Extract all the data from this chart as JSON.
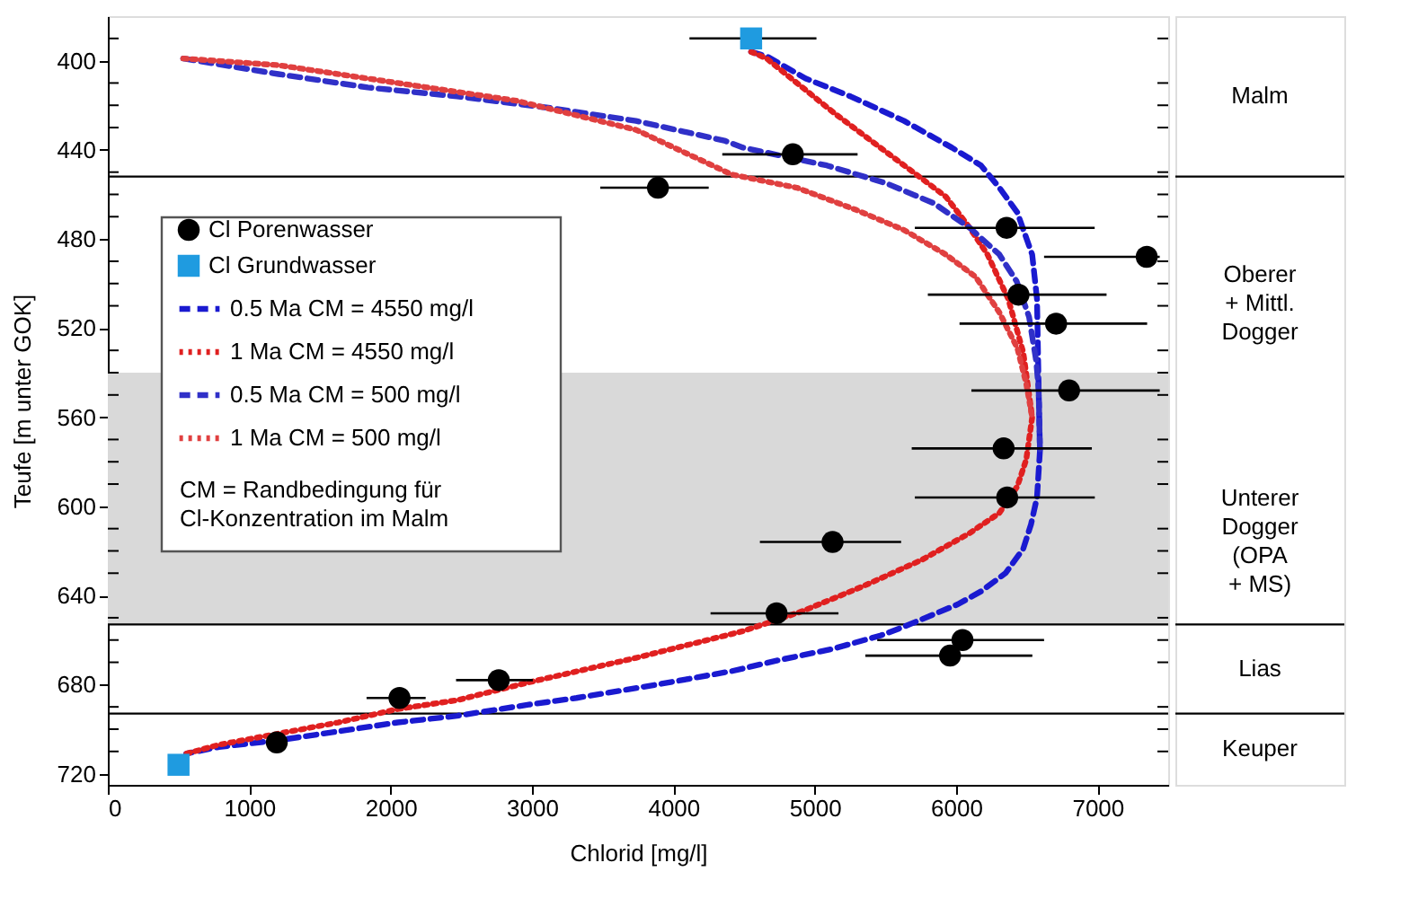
{
  "chart_data": {
    "type": "line",
    "xlabel": "Chlorid [mg/l]",
    "ylabel": "Teufe [m unter GOK]",
    "xlim": [
      0,
      7500
    ],
    "xticks": [
      0,
      1000,
      2000,
      3000,
      4000,
      5000,
      6000,
      7000
    ],
    "ylim": [
      725,
      380
    ],
    "yticks": [
      {
        "value": 390,
        "label": null
      },
      400,
      {
        "value": 410,
        "label": null
      },
      {
        "value": 420,
        "label": null
      },
      {
        "value": 430,
        "label": null
      },
      440,
      {
        "value": 450,
        "label": null
      },
      {
        "value": 460,
        "label": null
      },
      {
        "value": 470,
        "label": null
      },
      480,
      {
        "value": 490,
        "label": null
      },
      {
        "value": 500,
        "label": null
      },
      {
        "value": 510,
        "label": null
      },
      520,
      {
        "value": 530,
        "label": null
      },
      {
        "value": 540,
        "label": null
      },
      {
        "value": 550,
        "label": null
      },
      560,
      {
        "value": 570,
        "label": null
      },
      {
        "value": 580,
        "label": null
      },
      {
        "value": 590,
        "label": null
      },
      600,
      {
        "value": 610,
        "label": null
      },
      {
        "value": 620,
        "label": null
      },
      {
        "value": 630,
        "label": null
      },
      640,
      {
        "value": 650,
        "label": null
      },
      {
        "value": 660,
        "label": null
      },
      {
        "value": 670,
        "label": null
      },
      680,
      {
        "value": 690,
        "label": null
      },
      {
        "value": 700,
        "label": null
      },
      {
        "value": 710,
        "label": null
      },
      720
    ],
    "grid": false,
    "legend": "top left",
    "series": [
      {
        "name": "Cl Porenwasser",
        "type": "scatter",
        "marker": "circle",
        "color": "#000000",
        "x": [
          4845,
          3891,
          6357,
          7348,
          6441,
          6707,
          6799,
          6336,
          6361,
          5126,
          4730,
          6045,
          5957,
          2765,
          2063,
          1195
        ],
        "values": [
          442,
          457,
          475,
          488,
          505,
          518,
          548,
          574,
          596,
          616,
          648,
          660,
          667,
          678,
          686,
          706
        ],
        "xerrors": [
          [
            4346,
            5303
          ],
          [
            3483,
            4250
          ],
          [
            5708,
            6980
          ],
          [
            6622,
            7440
          ],
          [
            5800,
            7064
          ],
          [
            6024,
            7351
          ],
          [
            6108,
            7440
          ],
          [
            5686,
            6960
          ],
          [
            5708,
            6981
          ],
          [
            4612,
            5611
          ],
          [
            4263,
            5168
          ],
          [
            5442,
            6622
          ],
          [
            5358,
            6539
          ],
          [
            2463,
            3006
          ],
          [
            1830,
            2248
          ],
          null
        ]
      },
      {
        "name": "Cl Grundwasser",
        "type": "scatter",
        "marker": "square",
        "color": "#1f9be0",
        "x": [
          4550,
          500
        ],
        "values": [
          390,
          716
        ],
        "xerrors": [
          [
            4114,
            5012
          ],
          null
        ]
      },
      {
        "name": "0.5 Ma CM = 4550 mg/l",
        "type": "line",
        "line_style": "dashed",
        "color": "#1a1ad0",
        "x": [
          4550,
          4660,
          4937,
          5253,
          5632,
          5970,
          6176,
          6306,
          6432,
          6538,
          6572,
          6584,
          6593,
          6572,
          6530,
          6475,
          6349,
          6180,
          6011,
          5632,
          5464,
          5126,
          4747,
          4410,
          3884,
          3315,
          2977,
          2471,
          2050,
          1629,
          1207,
          786,
          554
        ],
        "values": [
          396,
          398,
          408,
          416,
          427,
          439,
          447,
          457,
          468,
          487,
          507,
          548,
          575,
          596,
          608,
          619,
          630,
          638,
          644,
          654,
          658,
          664,
          669,
          674,
          680,
          686,
          689,
          694,
          697,
          701,
          705,
          708,
          711
        ]
      },
      {
        "name": "1 Ma CM = 4550 mg/l",
        "type": "line",
        "line_style": "dotted",
        "color": "#e02020",
        "x": [
          4550,
          4660,
          4874,
          5148,
          5464,
          5717,
          5927,
          6096,
          6222,
          6369,
          6475,
          6538,
          6496,
          6433,
          6306,
          6096,
          5758,
          5337,
          4915,
          4494,
          3736,
          2977,
          2471,
          2050,
          1629,
          1207,
          786,
          554
        ],
        "values": [
          396,
          399,
          410,
          424,
          439,
          451,
          461,
          475,
          487,
          507,
          531,
          560,
          579,
          591,
          603,
          612,
          624,
          636,
          647,
          656,
          668,
          679,
          687,
          691,
          697,
          702,
          707,
          711
        ]
      },
      {
        "name": "0.5 Ma CM = 500 mg/l",
        "type": "line",
        "line_style": "dashed",
        "color": "#3030c8",
        "x": [
          533,
          1207,
          1839,
          2471,
          3104,
          3736,
          4368,
          4494,
          5085,
          5506,
          5843,
          6096,
          6306,
          6428,
          6516,
          6567,
          6584,
          6593
        ],
        "values": [
          399,
          406,
          412,
          416,
          421,
          427,
          436,
          439,
          447,
          455,
          464,
          475,
          487,
          499,
          515,
          535,
          548,
          575
        ]
      },
      {
        "name": "1 Ma CM = 500 mg/l",
        "type": "line",
        "line_style": "dotted",
        "color": "#e04040",
        "x": [
          533,
          1207,
          2050,
          2893,
          3736,
          4410,
          4874,
          5295,
          5632,
          5927,
          6138,
          6306,
          6433,
          6496,
          6538
        ],
        "values": [
          399,
          402,
          410,
          418,
          431,
          451,
          457,
          467,
          476,
          487,
          497,
          513,
          529,
          545,
          560
        ]
      }
    ],
    "bands": [
      {
        "axis": "y",
        "from": 540,
        "to": 653,
        "label": "Unterer\nDogger\n(OPA\n+ MS)",
        "color": "#d9d9d9"
      }
    ],
    "ref_lines": [
      {
        "axis": "y",
        "value": 452
      },
      {
        "axis": "y",
        "value": 653
      },
      {
        "axis": "y",
        "value": 693
      }
    ],
    "annotations": [
      "CM = Randbedingung für\nCl-Konzentration im Malm",
      "Malm",
      "Oberer\n+ Mittl.\nDogger",
      "Lias",
      "Keuper"
    ]
  }
}
